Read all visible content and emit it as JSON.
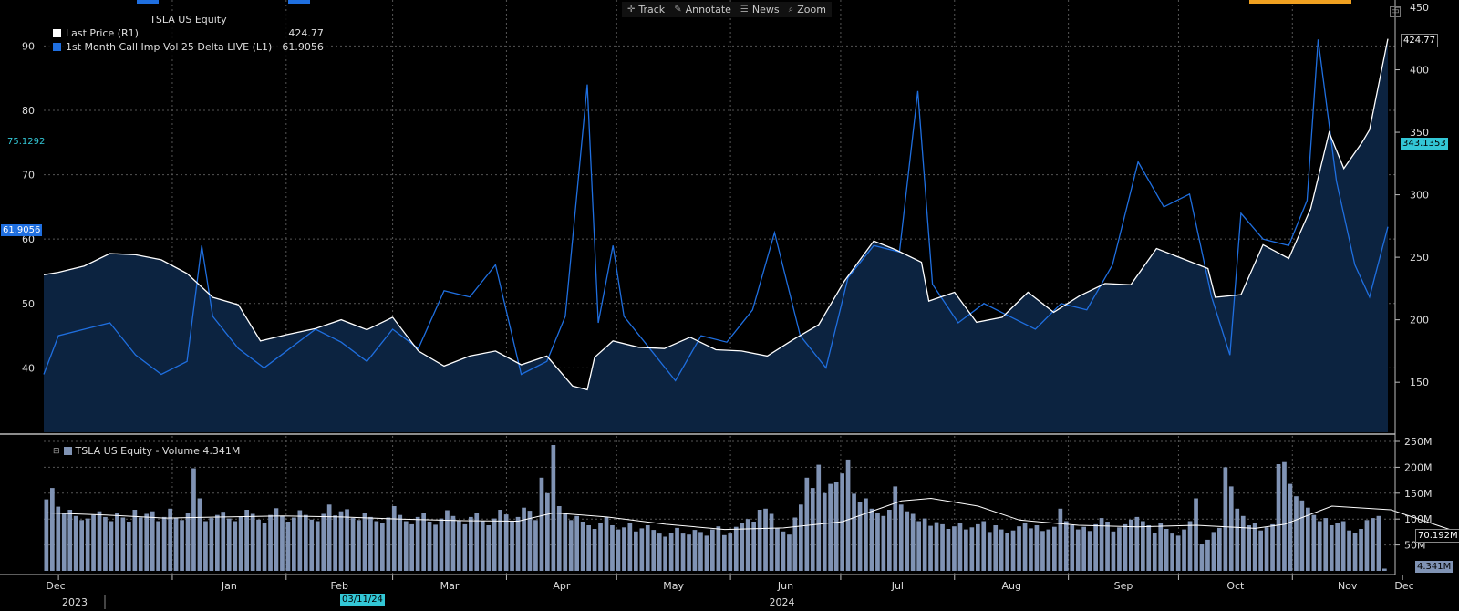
{
  "toolbar": {
    "track_label": "Track",
    "annotate_label": "Annotate",
    "news_label": "News",
    "zoom_label": "Zoom"
  },
  "legend": {
    "title": "TSLA US Equity",
    "series1_label": "Last Price  (R1)",
    "series1_value": "424.77",
    "series2_label": "1st Month Call Imp Vol 25 Delta LIVE  (L1)",
    "series2_value": "61.9056"
  },
  "volume_legend": {
    "label": "TSLA US Equity - Volume 4.341M"
  },
  "tags": {
    "price_right": "424.77",
    "ma_right": "343.1353",
    "iv_left": "61.9056",
    "iv_ma_left": "75.1292",
    "volume_ma_right": "70.192M",
    "volume_right": "4.341M",
    "date_cursor": "03/11/24"
  },
  "colors": {
    "price": "#ffffff",
    "iv": "#1f6fe0",
    "area": "#0c2340",
    "volume_bar": "#8093b4",
    "grid": "#555555",
    "tag_cyan": "#33c7d6"
  },
  "chart_data": [
    {
      "type": "line",
      "title": "TSLA US Equity",
      "x_range": [
        "2023-11-27",
        "2024-11-27"
      ],
      "left_axis": {
        "ylim": [
          30,
          96
        ],
        "ticks": [
          "40",
          "50",
          "60",
          "70",
          "80",
          "90"
        ]
      },
      "right_axis": {
        "ylim": [
          110,
          450
        ],
        "ticks": [
          "150",
          "200",
          "250",
          "300",
          "350",
          "400",
          "450"
        ]
      },
      "x_ticks": [
        "Dec",
        "Jan",
        "Feb",
        "Mar",
        "Apr",
        "May",
        "Jun",
        "Jul",
        "Aug",
        "Sep",
        "Oct",
        "Nov",
        "Dec"
      ],
      "x_years": [
        "2023",
        "2024"
      ],
      "grid": true,
      "legend_position": "top-left",
      "series": [
        {
          "name": "Last Price  (R1)",
          "axis": "right",
          "points": [
            [
              "2023-11-27",
              236
            ],
            [
              "2023-12-01",
              238
            ],
            [
              "2023-12-08",
              243
            ],
            [
              "2023-12-15",
              253
            ],
            [
              "2023-12-22",
              252
            ],
            [
              "2023-12-29",
              248
            ],
            [
              "2024-01-05",
              237
            ],
            [
              "2024-01-12",
              218
            ],
            [
              "2024-01-19",
              212
            ],
            [
              "2024-01-25",
              183
            ],
            [
              "2024-02-01",
              188
            ],
            [
              "2024-02-09",
              193
            ],
            [
              "2024-02-16",
              200
            ],
            [
              "2024-02-23",
              192
            ],
            [
              "2024-03-01",
              202
            ],
            [
              "2024-03-08",
              175
            ],
            [
              "2024-03-15",
              163
            ],
            [
              "2024-03-22",
              171
            ],
            [
              "2024-03-29",
              175
            ],
            [
              "2024-04-05",
              164
            ],
            [
              "2024-04-12",
              171
            ],
            [
              "2024-04-19",
              147
            ],
            [
              "2024-04-23",
              144
            ],
            [
              "2024-04-25",
              170
            ],
            [
              "2024-04-30",
              183
            ],
            [
              "2024-05-07",
              178
            ],
            [
              "2024-05-14",
              177
            ],
            [
              "2024-05-21",
              186
            ],
            [
              "2024-05-28",
              176
            ],
            [
              "2024-06-04",
              175
            ],
            [
              "2024-06-11",
              171
            ],
            [
              "2024-06-18",
              184
            ],
            [
              "2024-06-25",
              196
            ],
            [
              "2024-07-02",
              231
            ],
            [
              "2024-07-10",
              263
            ],
            [
              "2024-07-16",
              256
            ],
            [
              "2024-07-23",
              246
            ],
            [
              "2024-07-25",
              215
            ],
            [
              "2024-08-01",
              222
            ],
            [
              "2024-08-07",
              198
            ],
            [
              "2024-08-14",
              202
            ],
            [
              "2024-08-21",
              222
            ],
            [
              "2024-08-28",
              206
            ],
            [
              "2024-09-04",
              219
            ],
            [
              "2024-09-11",
              229
            ],
            [
              "2024-09-18",
              228
            ],
            [
              "2024-09-25",
              257
            ],
            [
              "2024-10-02",
              249
            ],
            [
              "2024-10-09",
              241
            ],
            [
              "2024-10-11",
              218
            ],
            [
              "2024-10-18",
              220
            ],
            [
              "2024-10-24",
              260
            ],
            [
              "2024-10-31",
              249
            ],
            [
              "2024-11-06",
              289
            ],
            [
              "2024-11-11",
              350
            ],
            [
              "2024-11-15",
              321
            ],
            [
              "2024-11-20",
              342
            ],
            [
              "2024-11-22",
              352
            ],
            [
              "2024-11-27",
              424.77
            ]
          ]
        },
        {
          "name": "1st Month Call Imp Vol 25 Delta LIVE  (L1)",
          "axis": "left",
          "points": [
            [
              "2023-11-27",
              39
            ],
            [
              "2023-12-01",
              45
            ],
            [
              "2023-12-08",
              46
            ],
            [
              "2023-12-15",
              47
            ],
            [
              "2023-12-22",
              42
            ],
            [
              "2023-12-29",
              39
            ],
            [
              "2024-01-05",
              41
            ],
            [
              "2024-01-09",
              59
            ],
            [
              "2024-01-12",
              48
            ],
            [
              "2024-01-19",
              43
            ],
            [
              "2024-01-26",
              40
            ],
            [
              "2024-02-02",
              43
            ],
            [
              "2024-02-09",
              46
            ],
            [
              "2024-02-16",
              44
            ],
            [
              "2024-02-23",
              41
            ],
            [
              "2024-03-01",
              46
            ],
            [
              "2024-03-08",
              43
            ],
            [
              "2024-03-15",
              52
            ],
            [
              "2024-03-22",
              51
            ],
            [
              "2024-03-29",
              56
            ],
            [
              "2024-04-05",
              39
            ],
            [
              "2024-04-12",
              41
            ],
            [
              "2024-04-17",
              48
            ],
            [
              "2024-04-23",
              84
            ],
            [
              "2024-04-26",
              47
            ],
            [
              "2024-04-30",
              59
            ],
            [
              "2024-05-03",
              48
            ],
            [
              "2024-05-10",
              43
            ],
            [
              "2024-05-17",
              38
            ],
            [
              "2024-05-24",
              45
            ],
            [
              "2024-05-31",
              44
            ],
            [
              "2024-06-07",
              49
            ],
            [
              "2024-06-13",
              61
            ],
            [
              "2024-06-20",
              45
            ],
            [
              "2024-06-27",
              40
            ],
            [
              "2024-07-03",
              54
            ],
            [
              "2024-07-10",
              59
            ],
            [
              "2024-07-17",
              58
            ],
            [
              "2024-07-22",
              83
            ],
            [
              "2024-07-26",
              53
            ],
            [
              "2024-08-02",
              47
            ],
            [
              "2024-08-09",
              50
            ],
            [
              "2024-08-16",
              48
            ],
            [
              "2024-08-23",
              46
            ],
            [
              "2024-08-30",
              50
            ],
            [
              "2024-09-06",
              49
            ],
            [
              "2024-09-13",
              56
            ],
            [
              "2024-09-20",
              72
            ],
            [
              "2024-09-27",
              65
            ],
            [
              "2024-10-04",
              67
            ],
            [
              "2024-10-10",
              51
            ],
            [
              "2024-10-15",
              42
            ],
            [
              "2024-10-18",
              64
            ],
            [
              "2024-10-24",
              60
            ],
            [
              "2024-10-31",
              59
            ],
            [
              "2024-11-05",
              66
            ],
            [
              "2024-11-08",
              91
            ],
            [
              "2024-11-13",
              69
            ],
            [
              "2024-11-18",
              56
            ],
            [
              "2024-11-22",
              51
            ],
            [
              "2024-11-27",
              61.9056
            ]
          ]
        }
      ]
    },
    {
      "type": "bar",
      "title": "TSLA US Equity - Volume 4.341M",
      "x_range": [
        "2023-11-27",
        "2024-11-27"
      ],
      "ylim": [
        0,
        250
      ],
      "y_unit": "M",
      "y_ticks": [
        "50M",
        "100M",
        "150M",
        "200M",
        "250M"
      ],
      "grid": true,
      "series": [
        {
          "name": "Volume",
          "values_millions": [
            138,
            160,
            124,
            112,
            118,
            106,
            98,
            101,
            108,
            115,
            104,
            96,
            112,
            103,
            95,
            118,
            103,
            110,
            115,
            96,
            104,
            120,
            103,
            98,
            112,
            198,
            140,
            96,
            102,
            108,
            114,
            101,
            96,
            104,
            118,
            110,
            99,
            93,
            108,
            121,
            106,
            95,
            103,
            117,
            108,
            99,
            96,
            110,
            128,
            107,
            115,
            119,
            102,
            98,
            111,
            104,
            96,
            92,
            103,
            125,
            108,
            96,
            90,
            104,
            112,
            95,
            89,
            101,
            117,
            106,
            97,
            90,
            104,
            112,
            96,
            88,
            101,
            118,
            109,
            96,
            104,
            122,
            116,
            98,
            180,
            150,
            243,
            125,
            112,
            98,
            106,
            95,
            88,
            81,
            92,
            104,
            88,
            80,
            84,
            92,
            76,
            82,
            88,
            79,
            72,
            66,
            74,
            83,
            72,
            70,
            79,
            75,
            68,
            80,
            86,
            69,
            72,
            85,
            93,
            100,
            95,
            118,
            120,
            110,
            82,
            76,
            70,
            103,
            128,
            180,
            160,
            205,
            150,
            168,
            172,
            188,
            215,
            149,
            132,
            140,
            120,
            112,
            106,
            118,
            163,
            128,
            115,
            110,
            96,
            101,
            87,
            94,
            90,
            81,
            86,
            92,
            80,
            84,
            90,
            96,
            75,
            88,
            80,
            74,
            78,
            86,
            93,
            82,
            88,
            77,
            80,
            85,
            120,
            96,
            88,
            80,
            85,
            77,
            90,
            102,
            95,
            76,
            84,
            90,
            99,
            104,
            96,
            88,
            74,
            92,
            81,
            72,
            68,
            80,
            96,
            140,
            52,
            60,
            75,
            83,
            200,
            163,
            120,
            106,
            88,
            92,
            78,
            84,
            90,
            206,
            210,
            168,
            144,
            136,
            122,
            108,
            96,
            102,
            88,
            92,
            96,
            78,
            74,
            81,
            98,
            102,
            106,
            4.341
          ]
        },
        {
          "name": "Volume moving average",
          "type": "line",
          "points_millions": [
            [
              0,
              112
            ],
            [
              10,
              108
            ],
            [
              20,
              102
            ],
            [
              30,
              104
            ],
            [
              40,
              106
            ],
            [
              50,
              104
            ],
            [
              60,
              100
            ],
            [
              70,
              97
            ],
            [
              80,
              96
            ],
            [
              86,
              112
            ],
            [
              95,
              104
            ],
            [
              105,
              90
            ],
            [
              115,
              80
            ],
            [
              125,
              83
            ],
            [
              135,
              95
            ],
            [
              145,
              135
            ],
            [
              150,
              140
            ],
            [
              158,
              125
            ],
            [
              165,
              98
            ],
            [
              175,
              88
            ],
            [
              185,
              85
            ],
            [
              195,
              88
            ],
            [
              205,
              82
            ],
            [
              210,
              90
            ],
            [
              218,
              125
            ],
            [
              228,
              118
            ],
            [
              238,
              80
            ],
            [
              248,
              70.192
            ]
          ]
        }
      ]
    }
  ]
}
